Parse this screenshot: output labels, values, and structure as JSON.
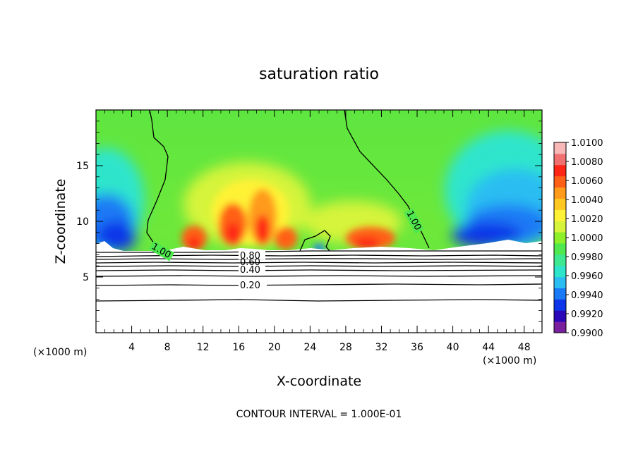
{
  "chart_data": {
    "type": "heatmap",
    "title": "saturation ratio",
    "xlabel": "X-coordinate",
    "ylabel": "Z-coordinate",
    "x_unit": "(×1000 m)",
    "x_unit_right": "(×1000 m)",
    "xlim": [
      0,
      50
    ],
    "ylim": [
      0,
      20
    ],
    "x_ticks": [
      "4",
      "8",
      "12",
      "16",
      "20",
      "24",
      "28",
      "32",
      "36",
      "40",
      "44",
      "48"
    ],
    "y_ticks": [
      "5",
      "10",
      "15"
    ],
    "contour_interval_label": "CONTOUR INTERVAL = 1.000E-01",
    "contour_labels": [
      "1.00",
      "1.00",
      "0.80",
      "0.60",
      "0.40",
      "0.20"
    ],
    "colorbar": {
      "range": [
        0.99,
        1.01
      ],
      "ticks": [
        "1.0100",
        "1.0080",
        "1.0060",
        "1.0040",
        "1.0020",
        "1.0000",
        "0.9980",
        "0.9960",
        "0.9940",
        "0.9920",
        "0.9900"
      ],
      "colors": [
        "#7a1f9e",
        "#2a08b8",
        "#0d34e8",
        "#1a7af5",
        "#2bbdf2",
        "#2ee5cc",
        "#3ee890",
        "#4fe84e",
        "#8ef02a",
        "#d6f43a",
        "#fff236",
        "#ffc820",
        "#ff9a1a",
        "#ff6018",
        "#ff2616",
        "#f07070",
        "#f8b8b8"
      ]
    },
    "surface_line_z": [
      3.0,
      7.2
    ],
    "warm_cores": [
      {
        "x": 11,
        "z": 8.5,
        "value": 1.006
      },
      {
        "x": 15,
        "z": 9.5,
        "value": 1.008
      },
      {
        "x": 18.5,
        "z": 10,
        "value": 1.008
      },
      {
        "x": 21,
        "z": 8.3,
        "value": 1.006
      },
      {
        "x": 31,
        "z": 8.7,
        "value": 1.006
      }
    ]
  }
}
